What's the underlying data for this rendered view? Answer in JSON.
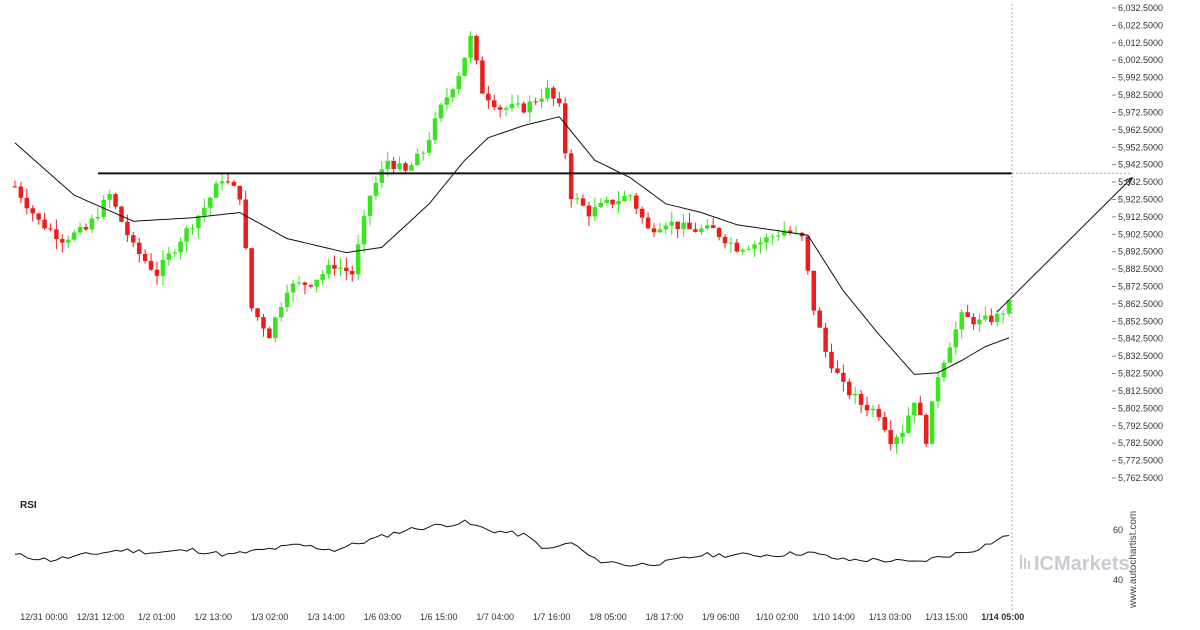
{
  "chart_data": {
    "type": "candlestick",
    "y_ticks": [
      "6,032.5000",
      "6,022.5000",
      "6,012.5000",
      "6,002.5000",
      "5,992.5000",
      "5,982.5000",
      "5,972.5000",
      "5,962.5000",
      "5,952.5000",
      "5,942.5000",
      "5,932.5000",
      "5,922.5000",
      "5,912.5000",
      "5,902.5000",
      "5,892.5000",
      "5,882.5000",
      "5,872.5000",
      "5,862.5000",
      "5,852.5000",
      "5,842.5000",
      "5,832.5000",
      "5,822.5000",
      "5,812.5000",
      "5,802.5000",
      "5,792.5000",
      "5,782.5000",
      "5,772.5000",
      "5,762.5000"
    ],
    "ylim": [
      5762.5,
      6032.5
    ],
    "x_ticks": [
      "12/31 00:00",
      "12/31 12:00",
      "1/2 01:00",
      "1/2 13:00",
      "1/3 02:00",
      "1/3 14:00",
      "1/6 03:00",
      "1/6 15:00",
      "1/7 04:00",
      "1/7 16:00",
      "1/8 05:00",
      "1/8 17:00",
      "1/9 06:00",
      "1/10 02:00",
      "1/10 14:00",
      "1/13 03:00",
      "1/13 15:00",
      "1/14 05:00"
    ],
    "x_tick_bold_index": 17,
    "resistance_level": 5937.5,
    "projection": {
      "from_price": 5858,
      "to_price": 5935
    },
    "price_series_anchors": [
      [
        0,
        5930
      ],
      [
        4,
        5910
      ],
      [
        8,
        5900
      ],
      [
        12,
        5905
      ],
      [
        16,
        5925
      ],
      [
        20,
        5895
      ],
      [
        24,
        5880
      ],
      [
        28,
        5900
      ],
      [
        32,
        5918
      ],
      [
        35,
        5935
      ],
      [
        38,
        5925
      ],
      [
        40,
        5860
      ],
      [
        43,
        5845
      ],
      [
        46,
        5872
      ],
      [
        50,
        5875
      ],
      [
        54,
        5885
      ],
      [
        57,
        5880
      ],
      [
        60,
        5925
      ],
      [
        63,
        5945
      ],
      [
        66,
        5938
      ],
      [
        69,
        5950
      ],
      [
        72,
        5975
      ],
      [
        75,
        5995
      ],
      [
        77,
        6015
      ],
      [
        79,
        5985
      ],
      [
        82,
        5975
      ],
      [
        86,
        5975
      ],
      [
        90,
        5985
      ],
      [
        92,
        5975
      ],
      [
        94,
        5925
      ],
      [
        97,
        5915
      ],
      [
        100,
        5920
      ],
      [
        104,
        5925
      ],
      [
        107,
        5905
      ],
      [
        110,
        5910
      ],
      [
        114,
        5905
      ],
      [
        118,
        5905
      ],
      [
        122,
        5895
      ],
      [
        126,
        5898
      ],
      [
        130,
        5905
      ],
      [
        133,
        5900
      ],
      [
        135,
        5860
      ],
      [
        137,
        5835
      ],
      [
        140,
        5815
      ],
      [
        143,
        5805
      ],
      [
        146,
        5800
      ],
      [
        148,
        5785
      ],
      [
        150,
        5790
      ],
      [
        152,
        5808
      ],
      [
        154,
        5785
      ],
      [
        156,
        5822
      ],
      [
        158,
        5840
      ],
      [
        160,
        5855
      ],
      [
        163,
        5852
      ],
      [
        166,
        5855
      ],
      [
        168,
        5862
      ]
    ],
    "ma_anchors": [
      [
        0,
        5955
      ],
      [
        10,
        5925
      ],
      [
        20,
        5910
      ],
      [
        30,
        5912
      ],
      [
        38,
        5915
      ],
      [
        46,
        5900
      ],
      [
        56,
        5892
      ],
      [
        62,
        5895
      ],
      [
        70,
        5920
      ],
      [
        76,
        5945
      ],
      [
        80,
        5958
      ],
      [
        86,
        5965
      ],
      [
        92,
        5970
      ],
      [
        98,
        5945
      ],
      [
        104,
        5935
      ],
      [
        110,
        5920
      ],
      [
        116,
        5915
      ],
      [
        122,
        5908
      ],
      [
        128,
        5905
      ],
      [
        134,
        5902
      ],
      [
        140,
        5870
      ],
      [
        146,
        5845
      ],
      [
        152,
        5822
      ],
      [
        156,
        5823
      ],
      [
        160,
        5830
      ],
      [
        164,
        5838
      ],
      [
        168,
        5843
      ]
    ],
    "rsi": {
      "title": "RSI",
      "y_ticks": [
        "60",
        "40"
      ],
      "ylim": [
        32,
        70
      ],
      "anchors": [
        [
          0,
          50
        ],
        [
          6,
          48
        ],
        [
          12,
          50
        ],
        [
          18,
          52
        ],
        [
          24,
          51
        ],
        [
          30,
          52
        ],
        [
          36,
          50
        ],
        [
          42,
          52
        ],
        [
          48,
          54
        ],
        [
          54,
          52
        ],
        [
          60,
          56
        ],
        [
          66,
          60
        ],
        [
          72,
          62
        ],
        [
          76,
          63
        ],
        [
          80,
          60
        ],
        [
          86,
          58
        ],
        [
          90,
          52
        ],
        [
          94,
          55
        ],
        [
          98,
          48
        ],
        [
          104,
          46
        ],
        [
          110,
          47
        ],
        [
          116,
          50
        ],
        [
          122,
          50
        ],
        [
          128,
          50
        ],
        [
          134,
          51
        ],
        [
          140,
          48
        ],
        [
          146,
          48
        ],
        [
          152,
          47
        ],
        [
          158,
          50
        ],
        [
          162,
          52
        ],
        [
          166,
          56
        ],
        [
          168,
          58
        ]
      ]
    }
  },
  "branding": {
    "watermark": "ICMarkets",
    "credit": "www.autochartist.com"
  },
  "colors": {
    "up": "#37e61c",
    "down": "#ee1c1c",
    "ma": "#111111",
    "resistance": "#111111",
    "projection": "#111111",
    "rsi_line": "#111111",
    "grid_text": "#333333",
    "crosshair": "#aaaaaa"
  }
}
